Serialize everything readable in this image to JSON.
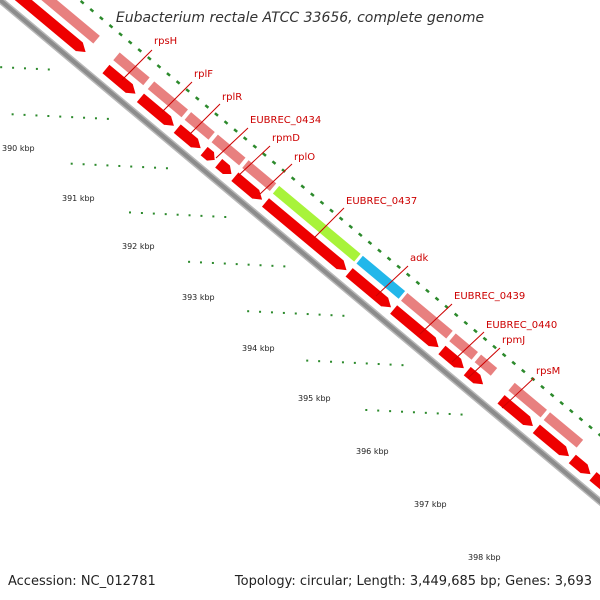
{
  "title": "Eubacterium rectale ATCC 33656, complete genome",
  "footer": {
    "accession": "Accession: NC_012781",
    "topology": "Topology: circular; Length: 3,449,685 bp; Genes: 3,693"
  },
  "kbp_labels": [
    "390 kbp",
    "391 kbp",
    "392 kbp",
    "393 kbp",
    "394 kbp",
    "395 kbp",
    "396 kbp",
    "397 kbp",
    "398 kbp"
  ],
  "gene_labels": [
    "rpsH",
    "rplF",
    "rplR",
    "EUBREC_0434",
    "rpmD",
    "rplO",
    "EUBREC_0437",
    "adk",
    "EUBREC_0439",
    "EUBREC_0440",
    "rpmJ",
    "rpsM"
  ],
  "colors": {
    "cds": "#e8807f",
    "gene": "#ee0000",
    "highlight_green": "#a8f33a",
    "highlight_blue": "#22b7ea",
    "highlight_orange": "#ee8800",
    "backbone": "#8c8c8c",
    "tick": "#2c8a2c",
    "leader": "#cc0000"
  }
}
